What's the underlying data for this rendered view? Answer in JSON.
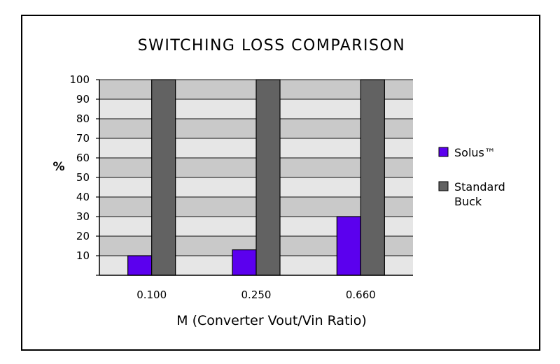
{
  "chart_data": {
    "type": "bar",
    "title": "SWITCHING LOSS COMPARISON",
    "xlabel": "M (Converter Vout/Vin Ratio)",
    "ylabel": "%",
    "categories": [
      "0.100",
      "0.250",
      "0.660"
    ],
    "series": [
      {
        "name": "Solus™",
        "values": [
          10,
          13,
          30
        ],
        "color": "#5b00ee"
      },
      {
        "name": "Standard Buck",
        "values": [
          100,
          100,
          100
        ],
        "color": "#626262"
      }
    ],
    "ylim": [
      0,
      100
    ],
    "yticks": [
      10,
      20,
      30,
      40,
      50,
      60,
      70,
      80,
      90,
      100
    ],
    "grid": true,
    "band_colors": [
      "#c9c9c9",
      "#e6e6e6"
    ],
    "legend_position": "right",
    "legend_lines": [
      [
        "Solus™"
      ],
      [
        "Standard",
        "Buck"
      ]
    ]
  }
}
